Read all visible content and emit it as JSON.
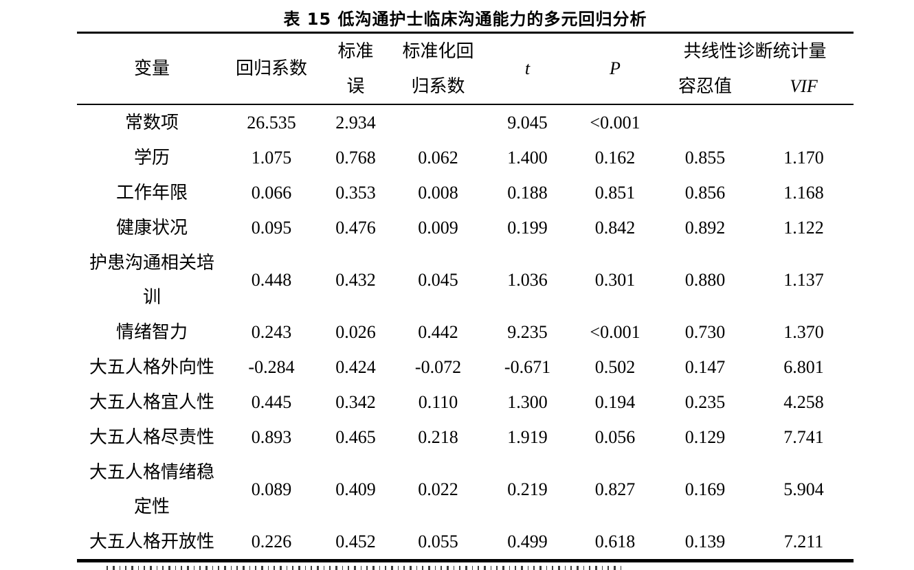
{
  "title": "表 15 低沟通护士临床沟通能力的多元回归分析",
  "table": {
    "header": {
      "variable": "变量",
      "coef": "回归系数",
      "se_lines": [
        "标准",
        "误"
      ],
      "std_coef_lines": [
        "标准化回",
        "归系数"
      ],
      "t": "t",
      "p": "P",
      "collinearity_group": "共线性诊断统计量",
      "tolerance": "容忍值",
      "vif": "VIF"
    },
    "rows": [
      {
        "variable": "常数项",
        "lines": [
          "常数项"
        ],
        "coef": "26.535",
        "se": "2.934",
        "std_coef": "",
        "t": "9.045",
        "p": "<0.001",
        "tolerance": "",
        "vif": ""
      },
      {
        "variable": "学历",
        "lines": [
          "学历"
        ],
        "coef": "1.075",
        "se": "0.768",
        "std_coef": "0.062",
        "t": "1.400",
        "p": "0.162",
        "tolerance": "0.855",
        "vif": "1.170"
      },
      {
        "variable": "工作年限",
        "lines": [
          "工作年限"
        ],
        "coef": "0.066",
        "se": "0.353",
        "std_coef": "0.008",
        "t": "0.188",
        "p": "0.851",
        "tolerance": "0.856",
        "vif": "1.168"
      },
      {
        "variable": "健康状况",
        "lines": [
          "健康状况"
        ],
        "coef": "0.095",
        "se": "0.476",
        "std_coef": "0.009",
        "t": "0.199",
        "p": "0.842",
        "tolerance": "0.892",
        "vif": "1.122"
      },
      {
        "variable": "护患沟通相关培训",
        "lines": [
          "护患沟通相关培",
          "训"
        ],
        "tall": true,
        "coef": "0.448",
        "se": "0.432",
        "std_coef": "0.045",
        "t": "1.036",
        "p": "0.301",
        "tolerance": "0.880",
        "vif": "1.137"
      },
      {
        "variable": "情绪智力",
        "lines": [
          "情绪智力"
        ],
        "coef": "0.243",
        "se": "0.026",
        "std_coef": "0.442",
        "t": "9.235",
        "p": "<0.001",
        "tolerance": "0.730",
        "vif": "1.370"
      },
      {
        "variable": "大五人格外向性",
        "lines": [
          "大五人格外向性"
        ],
        "coef": "-0.284",
        "se": "0.424",
        "std_coef": "-0.072",
        "t": "-0.671",
        "p": "0.502",
        "tolerance": "0.147",
        "vif": "6.801"
      },
      {
        "variable": "大五人格宜人性",
        "lines": [
          "大五人格宜人性"
        ],
        "coef": "0.445",
        "se": "0.342",
        "std_coef": "0.110",
        "t": "1.300",
        "p": "0.194",
        "tolerance": "0.235",
        "vif": "4.258"
      },
      {
        "variable": "大五人格尽责性",
        "lines": [
          "大五人格尽责性"
        ],
        "coef": "0.893",
        "se": "0.465",
        "std_coef": "0.218",
        "t": "1.919",
        "p": "0.056",
        "tolerance": "0.129",
        "vif": "7.741"
      },
      {
        "variable": "大五人格情绪稳定性",
        "lines": [
          "大五人格情绪稳",
          "定性"
        ],
        "tall": true,
        "coef": "0.089",
        "se": "0.409",
        "std_coef": "0.022",
        "t": "0.219",
        "p": "0.827",
        "tolerance": "0.169",
        "vif": "5.904"
      },
      {
        "variable": "大五人格开放性",
        "lines": [
          "大五人格开放性"
        ],
        "coef": "0.226",
        "se": "0.452",
        "std_coef": "0.055",
        "t": "0.499",
        "p": "0.618",
        "tolerance": "0.139",
        "vif": "7.211"
      }
    ]
  }
}
